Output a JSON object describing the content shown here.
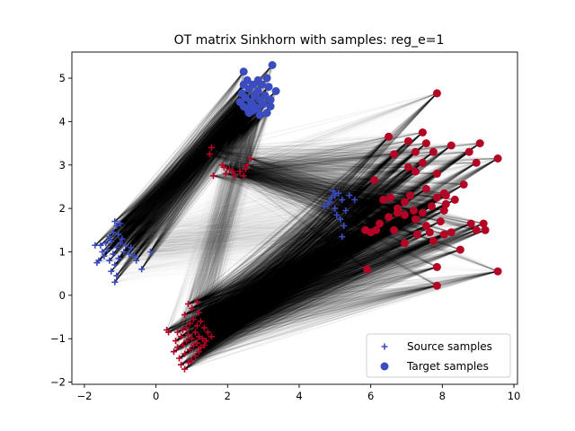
{
  "chart_data": {
    "type": "scatter",
    "title": "OT matrix Sinkhorn with samples: reg_e=1",
    "xlabel": "",
    "ylabel": "",
    "xlim": [
      -2.35,
      10.1
    ],
    "ylim": [
      -2.05,
      5.6
    ],
    "xticks": [
      -2,
      0,
      2,
      4,
      6,
      8,
      10
    ],
    "yticks": [
      -2,
      -1,
      0,
      1,
      2,
      3,
      4,
      5
    ],
    "grid": false,
    "legend": {
      "placement": "lower-right",
      "entries": [
        {
          "label": "Source samples",
          "marker": "plus",
          "color": "#3b4cc0"
        },
        {
          "label": "Target samples",
          "marker": "circle",
          "color": "#3b4cc0"
        }
      ]
    },
    "colors": {
      "blue": "#3b4cc0",
      "red": "#b40426",
      "line": "#000000"
    },
    "series": [
      {
        "name": "Source samples",
        "marker": "plus",
        "clusters": [
          {
            "color": "#3b4cc0",
            "points": [
              [
                -1.15,
                1.7
              ],
              [
                -1.1,
                1.6
              ],
              [
                -1.2,
                1.45
              ],
              [
                -1.05,
                1.4
              ],
              [
                -1.3,
                1.35
              ],
              [
                -0.95,
                1.3
              ],
              [
                -1.25,
                1.25
              ],
              [
                -1.4,
                1.2
              ],
              [
                -1.55,
                1.15
              ],
              [
                -1.7,
                1.15
              ],
              [
                -1.0,
                1.2
              ],
              [
                -0.85,
                1.15
              ],
              [
                -1.1,
                1.1
              ],
              [
                -1.35,
                1.05
              ],
              [
                -1.5,
                1.0
              ],
              [
                -0.9,
                1.0
              ],
              [
                -1.2,
                0.95
              ],
              [
                -0.75,
                0.95
              ],
              [
                -0.6,
                0.9
              ],
              [
                -1.45,
                0.9
              ],
              [
                -1.05,
                0.85
              ],
              [
                -1.3,
                0.8
              ],
              [
                -0.55,
                0.8
              ],
              [
                -1.6,
                0.8
              ],
              [
                -1.65,
                0.75
              ],
              [
                -1.15,
                0.7
              ],
              [
                -0.4,
                0.6
              ],
              [
                -1.25,
                0.55
              ],
              [
                -1.1,
                0.45
              ],
              [
                -1.15,
                0.3
              ],
              [
                -0.15,
                1.0
              ],
              [
                -0.7,
                1.1
              ],
              [
                -1.0,
                1.65
              ]
            ]
          },
          {
            "color": "#3b4cc0",
            "points": [
              [
                4.95,
                2.4
              ],
              [
                5.1,
                2.35
              ],
              [
                5.4,
                2.3
              ],
              [
                4.9,
                2.25
              ],
              [
                5.2,
                2.2
              ],
              [
                5.55,
                2.2
              ],
              [
                4.8,
                2.1
              ],
              [
                4.7,
                2.05
              ],
              [
                5.0,
                2.0
              ],
              [
                5.3,
                1.95
              ],
              [
                5.05,
                1.85
              ],
              [
                5.15,
                1.75
              ],
              [
                5.25,
                1.6
              ],
              [
                5.2,
                1.35
              ],
              [
                4.85,
                2.15
              ],
              [
                5.0,
                2.3
              ]
            ]
          },
          {
            "color": "#b40426",
            "points": [
              [
                1.55,
                3.4
              ],
              [
                1.5,
                3.25
              ],
              [
                1.9,
                2.95
              ],
              [
                2.05,
                2.9
              ],
              [
                1.95,
                2.8
              ],
              [
                2.15,
                2.85
              ],
              [
                2.2,
                2.75
              ],
              [
                2.45,
                2.75
              ],
              [
                1.6,
                2.75
              ],
              [
                2.55,
                3.0
              ],
              [
                2.65,
                3.15
              ],
              [
                1.85,
                3.0
              ],
              [
                2.35,
                2.85
              ],
              [
                2.5,
                2.9
              ]
            ]
          },
          {
            "color": "#b40426",
            "points": [
              [
                1.15,
                -0.15
              ],
              [
                0.9,
                -0.2
              ],
              [
                1.0,
                -0.3
              ],
              [
                1.2,
                -0.4
              ],
              [
                0.8,
                -0.45
              ],
              [
                1.05,
                -0.55
              ],
              [
                1.25,
                -0.6
              ],
              [
                0.95,
                -0.65
              ],
              [
                1.15,
                -0.7
              ],
              [
                0.85,
                -0.75
              ],
              [
                1.35,
                -0.75
              ],
              [
                0.75,
                -0.8
              ],
              [
                1.1,
                -0.85
              ],
              [
                0.6,
                -0.85
              ],
              [
                0.3,
                -0.8
              ],
              [
                0.35,
                -0.85
              ],
              [
                1.45,
                -0.85
              ],
              [
                0.9,
                -0.9
              ],
              [
                1.2,
                -0.95
              ],
              [
                0.7,
                -0.95
              ],
              [
                1.0,
                -1.0
              ],
              [
                1.3,
                -1.0
              ],
              [
                0.55,
                -1.05
              ],
              [
                0.85,
                -1.05
              ],
              [
                1.15,
                -1.1
              ],
              [
                0.75,
                -1.15
              ],
              [
                1.05,
                -1.15
              ],
              [
                1.35,
                -1.15
              ],
              [
                0.6,
                -1.2
              ],
              [
                0.95,
                -1.25
              ],
              [
                1.2,
                -1.3
              ],
              [
                0.8,
                -1.35
              ],
              [
                1.1,
                -1.4
              ],
              [
                0.65,
                -1.45
              ],
              [
                1.0,
                -1.5
              ],
              [
                0.9,
                -1.55
              ],
              [
                0.7,
                -1.6
              ],
              [
                0.8,
                -1.7
              ],
              [
                1.25,
                -1.2
              ],
              [
                1.4,
                -1.05
              ],
              [
                0.5,
                -1.3
              ],
              [
                1.55,
                -0.95
              ]
            ]
          }
        ]
      },
      {
        "name": "Target samples",
        "marker": "circle",
        "clusters": [
          {
            "color": "#3b4cc0",
            "points": [
              [
                3.25,
                5.3
              ],
              [
                2.45,
                5.15
              ],
              [
                3.1,
                5.0
              ],
              [
                2.55,
                4.95
              ],
              [
                2.85,
                4.95
              ],
              [
                2.45,
                4.85
              ],
              [
                2.7,
                4.85
              ],
              [
                2.95,
                4.85
              ],
              [
                3.15,
                4.8
              ],
              [
                2.6,
                4.75
              ],
              [
                2.85,
                4.7
              ],
              [
                3.35,
                4.7
              ],
              [
                2.4,
                4.65
              ],
              [
                2.75,
                4.6
              ],
              [
                3.05,
                4.6
              ],
              [
                2.5,
                4.55
              ],
              [
                2.9,
                4.5
              ],
              [
                2.35,
                4.45
              ],
              [
                2.65,
                4.45
              ],
              [
                3.0,
                4.4
              ],
              [
                2.45,
                4.35
              ],
              [
                2.75,
                4.35
              ],
              [
                2.55,
                4.3
              ],
              [
                2.85,
                4.3
              ],
              [
                3.2,
                4.35
              ],
              [
                2.7,
                4.25
              ],
              [
                2.6,
                4.2
              ],
              [
                3.1,
                4.2
              ],
              [
                2.9,
                4.15
              ],
              [
                3.2,
                4.5
              ]
            ]
          },
          {
            "color": "#b40426",
            "points": [
              [
                7.85,
                4.65
              ],
              [
                6.5,
                3.65
              ],
              [
                7.45,
                3.75
              ],
              [
                7.05,
                3.55
              ],
              [
                7.55,
                3.5
              ],
              [
                8.25,
                3.45
              ],
              [
                9.05,
                3.5
              ],
              [
                7.25,
                3.3
              ],
              [
                7.75,
                3.3
              ],
              [
                8.75,
                3.3
              ],
              [
                6.65,
                3.25
              ],
              [
                9.55,
                3.15
              ],
              [
                7.45,
                3.05
              ],
              [
                8.95,
                3.05
              ],
              [
                7.05,
                2.95
              ],
              [
                7.25,
                2.85
              ],
              [
                7.85,
                2.8
              ],
              [
                6.1,
                2.65
              ],
              [
                8.6,
                2.55
              ],
              [
                7.55,
                2.45
              ],
              [
                8.05,
                2.35
              ],
              [
                7.1,
                2.3
              ],
              [
                6.55,
                2.25
              ],
              [
                7.85,
                2.25
              ],
              [
                8.1,
                2.3
              ],
              [
                6.35,
                2.2
              ],
              [
                8.35,
                2.2
              ],
              [
                6.95,
                2.15
              ],
              [
                8.1,
                2.1
              ],
              [
                6.75,
                2.0
              ],
              [
                7.2,
                1.95
              ],
              [
                7.45,
                1.9
              ],
              [
                6.95,
                1.85
              ],
              [
                6.5,
                1.8
              ],
              [
                7.25,
                1.75
              ],
              [
                9.15,
                1.65
              ],
              [
                6.25,
                1.65
              ],
              [
                8.8,
                1.65
              ],
              [
                7.95,
                1.7
              ],
              [
                7.55,
                1.6
              ],
              [
                8.95,
                1.5
              ],
              [
                9.2,
                1.5
              ],
              [
                7.65,
                1.45
              ],
              [
                8.25,
                1.45
              ],
              [
                6.0,
                1.45
              ],
              [
                6.65,
                1.5
              ],
              [
                7.3,
                1.4
              ],
              [
                6.95,
                1.2
              ],
              [
                7.75,
                1.25
              ],
              [
                8.5,
                1.05
              ],
              [
                7.85,
                0.65
              ],
              [
                5.9,
                0.6
              ],
              [
                9.55,
                0.55
              ],
              [
                7.85,
                0.22
              ],
              [
                5.85,
                1.5
              ],
              [
                6.15,
                1.5
              ],
              [
                8.05,
                1.4
              ],
              [
                8.05,
                1.95
              ],
              [
                6.75,
                1.9
              ],
              [
                7.7,
                2.05
              ]
            ]
          }
        ]
      }
    ]
  }
}
